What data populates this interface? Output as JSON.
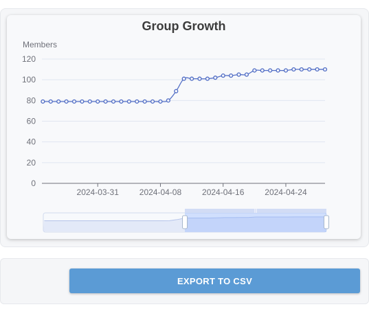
{
  "export_button": {
    "label": "EXPORT TO CSV"
  },
  "colors": {
    "series": "#5470c6",
    "button": "#5b9bd5"
  },
  "chart_data": {
    "type": "line",
    "title": "Group Growth",
    "ylabel": "Members",
    "xlabel": "",
    "ylim": [
      0,
      120
    ],
    "y_ticks": [
      0,
      20,
      40,
      60,
      80,
      100,
      120
    ],
    "x_tick_labels": [
      "2024-03-31",
      "2024-04-08",
      "2024-04-16",
      "2024-04-24"
    ],
    "grid": true,
    "legend": "none",
    "series": [
      {
        "x": [
          "2024-03-24",
          "2024-03-25",
          "2024-03-26",
          "2024-03-27",
          "2024-03-28",
          "2024-03-29",
          "2024-03-30",
          "2024-03-31",
          "2024-04-01",
          "2024-04-02",
          "2024-04-03",
          "2024-04-04",
          "2024-04-05",
          "2024-04-06",
          "2024-04-07",
          "2024-04-08",
          "2024-04-09",
          "2024-04-10",
          "2024-04-11",
          "2024-04-12",
          "2024-04-13",
          "2024-04-14",
          "2024-04-15",
          "2024-04-16",
          "2024-04-17",
          "2024-04-18",
          "2024-04-19",
          "2024-04-20",
          "2024-04-21",
          "2024-04-22",
          "2024-04-23",
          "2024-04-24",
          "2024-04-25",
          "2024-04-26",
          "2024-04-27",
          "2024-04-28",
          "2024-04-29"
        ],
        "values": [
          79,
          79,
          79,
          79,
          79,
          79,
          79,
          79,
          79,
          79,
          79,
          79,
          79,
          79,
          79,
          79,
          80,
          89,
          101,
          101,
          101,
          101,
          102,
          104,
          104,
          105,
          105,
          109,
          109,
          109,
          109,
          109,
          110,
          110,
          110,
          110,
          110
        ]
      }
    ],
    "data_zoom": {
      "start": 0.5,
      "end": 1.0
    }
  }
}
